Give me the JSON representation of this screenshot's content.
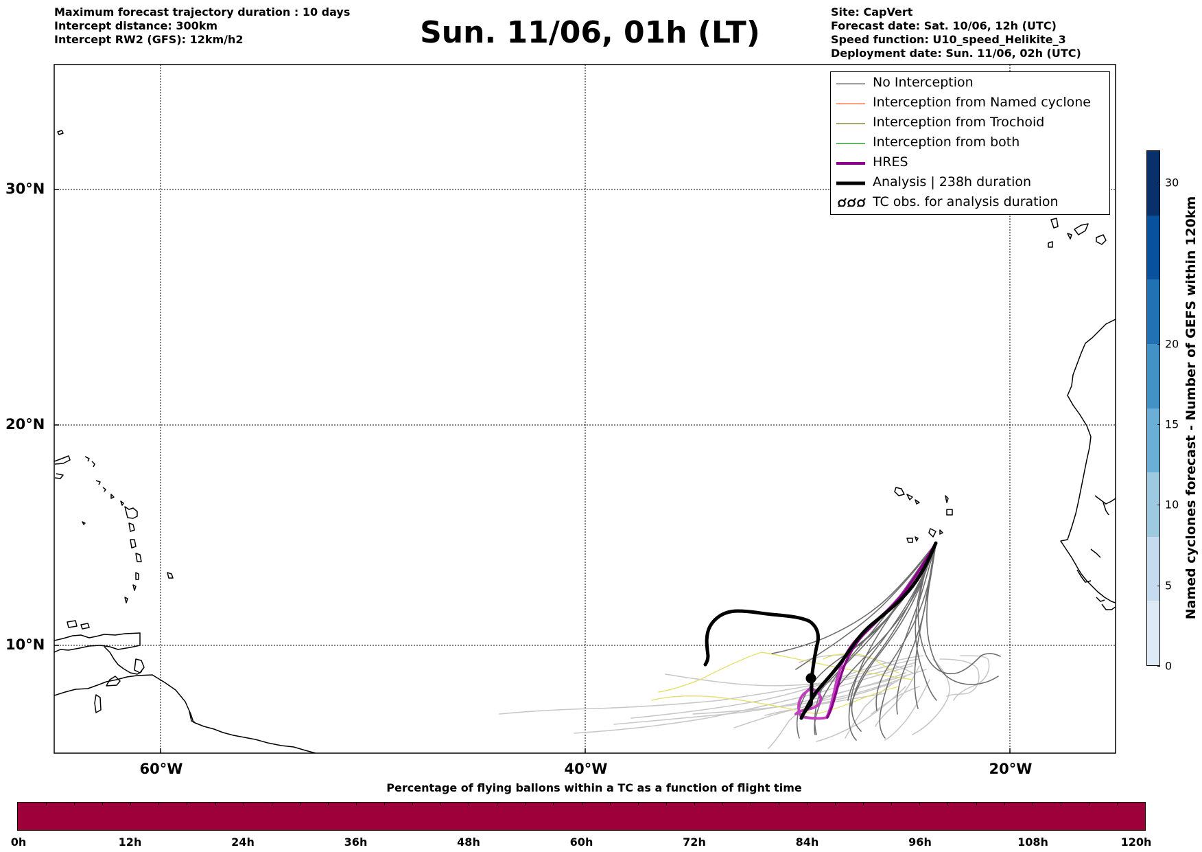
{
  "header": {
    "title": "Sun. 11/06, 01h (LT)",
    "left_info": [
      "Maximum forecast trajectory duration : 10 days",
      "Intercept distance: 300km",
      "Intercept RW2 (GFS):  12km/h2"
    ],
    "right_info": [
      "Site: CapVert",
      "Forecast date: Sat. 10/06, 12h (UTC)",
      "Speed function: U10_speed_Helikite_3",
      "Deployment date: Sun. 11/06, 02h (UTC)"
    ]
  },
  "map": {
    "lon_range": [
      -65,
      -15
    ],
    "lat_range": [
      5.4,
      34.7
    ],
    "lat_labels": [
      "30°N",
      "20°N",
      "10°N"
    ],
    "lon_labels": [
      "60°W",
      "40°W",
      "20°W"
    ],
    "gridlines": true
  },
  "legend": {
    "items": [
      {
        "label": "No Interception",
        "color": "#808080"
      },
      {
        "label": "Interception from Named cyclone",
        "color": "#ff7f50"
      },
      {
        "label": "Interception from Trochoid",
        "color": "#8b8b3a"
      },
      {
        "label": "Interception from both",
        "color": "#2e9e2e"
      },
      {
        "label": "HRES",
        "color": "#8b008b"
      },
      {
        "label": "Analysis | 238h duration",
        "color": "#000000"
      },
      {
        "label": "TC obs. for analysis duration",
        "color": "#000000",
        "icon": "tc-symbol-icon"
      }
    ]
  },
  "colorbar_right": {
    "label": "Named cyclones forecast - Number of GEFS within 120km",
    "ticks": [
      "0",
      "5",
      "10",
      "15",
      "20",
      "30"
    ],
    "tick_values": [
      0,
      5,
      10,
      15,
      20,
      30
    ],
    "vmax": 32,
    "colors": [
      "#deebf7",
      "#c6dbef",
      "#9ecae1",
      "#6baed6",
      "#4292c6",
      "#2171b5",
      "#08519c",
      "#08306b"
    ]
  },
  "colorbar_bottom": {
    "title": "Percentage of flying ballons within a TC as a function of flight time",
    "ticks": [
      "0h",
      "12h",
      "24h",
      "36h",
      "48h",
      "60h",
      "72h",
      "84h",
      "96h",
      "108h",
      "120h"
    ],
    "fill_color": "#9e003a"
  }
}
